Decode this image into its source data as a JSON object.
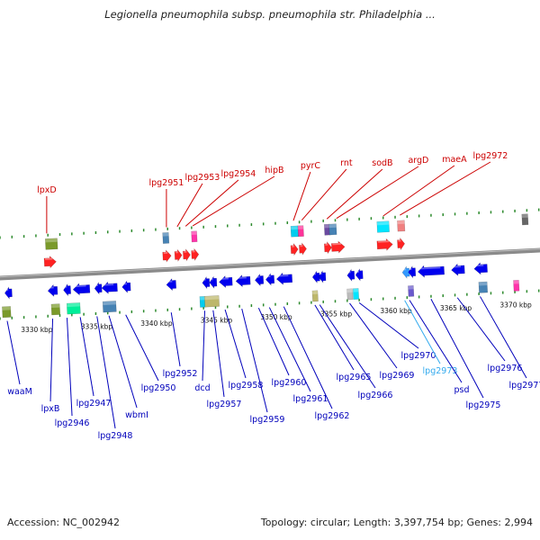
{
  "title": "Legionella pneumophila subsp. pneumophila str. Philadelphia ...",
  "footer": {
    "accession": "Accession: NC_002942",
    "summary": "Topology: circular; Length: 3,397,754 bp; Genes: 2,994"
  },
  "colors": {
    "backbone": "#8a8a8a",
    "forward_label": "#cc0000",
    "reverse_label": "#0000bb",
    "highlight_label": "#33aaee",
    "tick": "#2e8b2e"
  },
  "scale": {
    "unit": "kbp",
    "ticks": [
      {
        "kbp": 3330,
        "label": "3330 kbp"
      },
      {
        "kbp": 3335,
        "label": "3335 kbp"
      },
      {
        "kbp": 3340,
        "label": "3340 kbp"
      },
      {
        "kbp": 3345,
        "label": "3345 kbp"
      },
      {
        "kbp": 3350,
        "label": "3350 kbp"
      },
      {
        "kbp": 3355,
        "label": "3355 kbp"
      },
      {
        "kbp": 3360,
        "label": "3360 kbp"
      },
      {
        "kbp": 3365,
        "label": "3365 kbp"
      },
      {
        "kbp": 3370,
        "label": "3370 kbp"
      }
    ]
  },
  "genes": {
    "forward": [
      {
        "name": "lpxD",
        "kbp": 3330.6,
        "len": 1.0,
        "color": "#ff2222"
      },
      {
        "name": "lpg2951",
        "kbp": 3340.5,
        "len": 0.7,
        "color": "#ff2222"
      },
      {
        "name": "lpg2953",
        "kbp": 3341.5,
        "len": 0.4,
        "color": "#ff2222"
      },
      {
        "name": "lpg2954",
        "kbp": 3342.2,
        "len": 0.4,
        "color": "#ff2222"
      },
      {
        "name": "hipB",
        "kbp": 3342.9,
        "len": 0.3,
        "color": "#ff2222"
      },
      {
        "name": "pyrC",
        "kbp": 3351.2,
        "len": 0.6,
        "color": "#ff2222"
      },
      {
        "name": "rnt",
        "kbp": 3351.9,
        "len": 0.4,
        "color": "#ff2222"
      },
      {
        "name": "sodB",
        "kbp": 3354.0,
        "len": 0.6,
        "color": "#ff2222"
      },
      {
        "name": "argD",
        "kbp": 3354.6,
        "len": 1.1,
        "color": "#ff2222"
      },
      {
        "name": "maeA",
        "kbp": 3358.4,
        "len": 1.3,
        "color": "#ff2222"
      },
      {
        "name": "lpg2972",
        "kbp": 3360.1,
        "len": 0.6,
        "color": "#ff2222"
      }
    ],
    "reverse": [
      {
        "name": "waaM",
        "kbp": 3327.3,
        "len": 0.5,
        "color": "#0000ee"
      },
      {
        "name": "lpxB",
        "kbp": 3330.9,
        "len": 0.8,
        "color": "#0000ee"
      },
      {
        "name": "lpg2946",
        "kbp": 3332.2,
        "len": 0.6,
        "color": "#0000ee"
      },
      {
        "name": "lpg2947",
        "kbp": 3333.0,
        "len": 1.4,
        "color": "#0000ee"
      },
      {
        "name": "lpg2948",
        "kbp": 3334.8,
        "len": 0.5,
        "color": "#0000ee"
      },
      {
        "name": "wbmI",
        "kbp": 3335.4,
        "len": 1.3,
        "color": "#0000ee"
      },
      {
        "name": "lpg2950",
        "kbp": 3337.1,
        "len": 0.7,
        "color": "#0000ee"
      },
      {
        "name": "lpg2952",
        "kbp": 3340.8,
        "len": 0.8,
        "color": "#0000ee"
      },
      {
        "name": "dcd",
        "kbp": 3343.8,
        "len": 0.4,
        "color": "#0000ee"
      },
      {
        "name": "lpg2957",
        "kbp": 3344.4,
        "len": 0.6,
        "color": "#0000ee"
      },
      {
        "name": "lpg2958",
        "kbp": 3345.2,
        "len": 1.1,
        "color": "#0000ee"
      },
      {
        "name": "lpg2959",
        "kbp": 3346.6,
        "len": 1.2,
        "color": "#0000ee"
      },
      {
        "name": "lpg2960",
        "kbp": 3348.2,
        "len": 0.7,
        "color": "#0000ee"
      },
      {
        "name": "lpg2961",
        "kbp": 3349.1,
        "len": 0.7,
        "color": "#0000ee"
      },
      {
        "name": "lpg2962",
        "kbp": 3350.0,
        "len": 1.3,
        "color": "#0000ee"
      },
      {
        "name": "lpg2965",
        "kbp": 3353.0,
        "len": 0.4,
        "color": "#0000ee"
      },
      {
        "name": "lpg2966",
        "kbp": 3353.5,
        "len": 0.3,
        "color": "#0000ee"
      },
      {
        "name": "lpg2969",
        "kbp": 3355.9,
        "len": 0.5,
        "color": "#0000ee"
      },
      {
        "name": "lpg2970",
        "kbp": 3356.6,
        "len": 0.6,
        "color": "#0000ee"
      },
      {
        "name": "lpg2973",
        "kbp": 3360.5,
        "len": 0.4,
        "color": "#3399ff"
      },
      {
        "name": "psd",
        "kbp": 3361.0,
        "len": 0.3,
        "color": "#0000ee"
      },
      {
        "name": "lpg2975",
        "kbp": 3361.8,
        "len": 2.2,
        "color": "#0000ee"
      },
      {
        "name": "lpg2976",
        "kbp": 3364.6,
        "len": 1.1,
        "color": "#0000ee"
      },
      {
        "name": "lpg2977",
        "kbp": 3366.5,
        "len": 1.1,
        "color": "#0000ee"
      }
    ]
  },
  "labels": {
    "forward": [
      {
        "text": "lpxD",
        "gene_kbp": 3330.8
      },
      {
        "text": "lpg2951",
        "gene_kbp": 3340.8
      },
      {
        "text": "lpg2953",
        "gene_kbp": 3341.7
      },
      {
        "text": "lpg2954",
        "gene_kbp": 3342.4
      },
      {
        "text": "hipB",
        "gene_kbp": 3343.0
      },
      {
        "text": "pyrC",
        "gene_kbp": 3351.4
      },
      {
        "text": "rnt",
        "gene_kbp": 3352.1
      },
      {
        "text": "sodB",
        "gene_kbp": 3354.2
      },
      {
        "text": "argD",
        "gene_kbp": 3355.0
      },
      {
        "text": "maeA",
        "gene_kbp": 3358.9
      },
      {
        "text": "lpg2972",
        "gene_kbp": 3360.3
      }
    ],
    "reverse": [
      {
        "text": "waaM",
        "gene_kbp": 3327.5
      },
      {
        "text": "lpxB",
        "gene_kbp": 3331.3
      },
      {
        "text": "lpg2946",
        "gene_kbp": 3332.5
      },
      {
        "text": "lpg2947",
        "gene_kbp": 3333.6
      },
      {
        "text": "lpg2948",
        "gene_kbp": 3335.0
      },
      {
        "text": "wbmI",
        "gene_kbp": 3336.0
      },
      {
        "text": "lpg2950",
        "gene_kbp": 3337.4
      },
      {
        "text": "lpg2952",
        "gene_kbp": 3341.2
      },
      {
        "text": "dcd",
        "gene_kbp": 3344.0
      },
      {
        "text": "lpg2957",
        "gene_kbp": 3344.7
      },
      {
        "text": "lpg2958",
        "gene_kbp": 3345.7
      },
      {
        "text": "lpg2959",
        "gene_kbp": 3347.1
      },
      {
        "text": "lpg2960",
        "gene_kbp": 3348.5
      },
      {
        "text": "lpg2961",
        "gene_kbp": 3349.4
      },
      {
        "text": "lpg2962",
        "gene_kbp": 3350.6
      },
      {
        "text": "lpg2965",
        "gene_kbp": 3353.2
      },
      {
        "text": "lpg2966",
        "gene_kbp": 3353.6
      },
      {
        "text": "lpg2969",
        "gene_kbp": 3356.1
      },
      {
        "text": "lpg2970",
        "gene_kbp": 3356.9
      },
      {
        "text": "lpg2973",
        "gene_kbp": 3360.7,
        "highlight": true
      },
      {
        "text": "psd",
        "gene_kbp": 3361.1
      },
      {
        "text": "lpg2975",
        "gene_kbp": 3362.9
      },
      {
        "text": "lpg2976",
        "gene_kbp": 3365.1
      },
      {
        "text": "lpg2977",
        "gene_kbp": 3367.0
      }
    ]
  },
  "features": {
    "forward": [
      {
        "kbp": 3330.7,
        "len": 1.0,
        "color": "#7a9a2a"
      },
      {
        "kbp": 3340.5,
        "len": 0.5,
        "color": "#4682b4"
      },
      {
        "kbp": 3342.9,
        "len": 0.2,
        "color": "#ff33aa"
      },
      {
        "kbp": 3351.2,
        "len": 0.6,
        "color": "#00ccee"
      },
      {
        "kbp": 3351.8,
        "len": 0.3,
        "color": "#ff3399"
      },
      {
        "kbp": 3354.0,
        "len": 0.4,
        "color": "#6a4aa0"
      },
      {
        "kbp": 3354.4,
        "len": 0.6,
        "color": "#4682b4"
      },
      {
        "kbp": 3358.4,
        "len": 1.0,
        "color": "#00e5ff"
      },
      {
        "kbp": 3360.1,
        "len": 0.6,
        "color": "#f08080"
      },
      {
        "kbp": 3370.5,
        "len": 0.5,
        "color": "#666666"
      }
    ],
    "reverse": [
      {
        "kbp": 3327.1,
        "len": 0.7,
        "color": "#7a9a2a"
      },
      {
        "kbp": 3331.2,
        "len": 0.7,
        "color": "#7a9a2a"
      },
      {
        "kbp": 3332.5,
        "len": 1.1,
        "color": "#00ee99"
      },
      {
        "kbp": 3335.5,
        "len": 1.1,
        "color": "#4682b4"
      },
      {
        "kbp": 3343.6,
        "len": 0.3,
        "color": "#00ccee"
      },
      {
        "kbp": 3344.0,
        "len": 1.2,
        "color": "#bdb76b"
      },
      {
        "kbp": 3353.0,
        "len": 0.4,
        "color": "#bdb76b"
      },
      {
        "kbp": 3355.9,
        "len": 0.4,
        "color": "#bbbbbb"
      },
      {
        "kbp": 3356.4,
        "len": 0.4,
        "color": "#00e5ff"
      },
      {
        "kbp": 3361.0,
        "len": 0.4,
        "color": "#6a5acd"
      },
      {
        "kbp": 3366.9,
        "len": 0.7,
        "color": "#4682b4"
      },
      {
        "kbp": 3369.8,
        "len": 0.4,
        "color": "#ff33aa"
      }
    ]
  }
}
